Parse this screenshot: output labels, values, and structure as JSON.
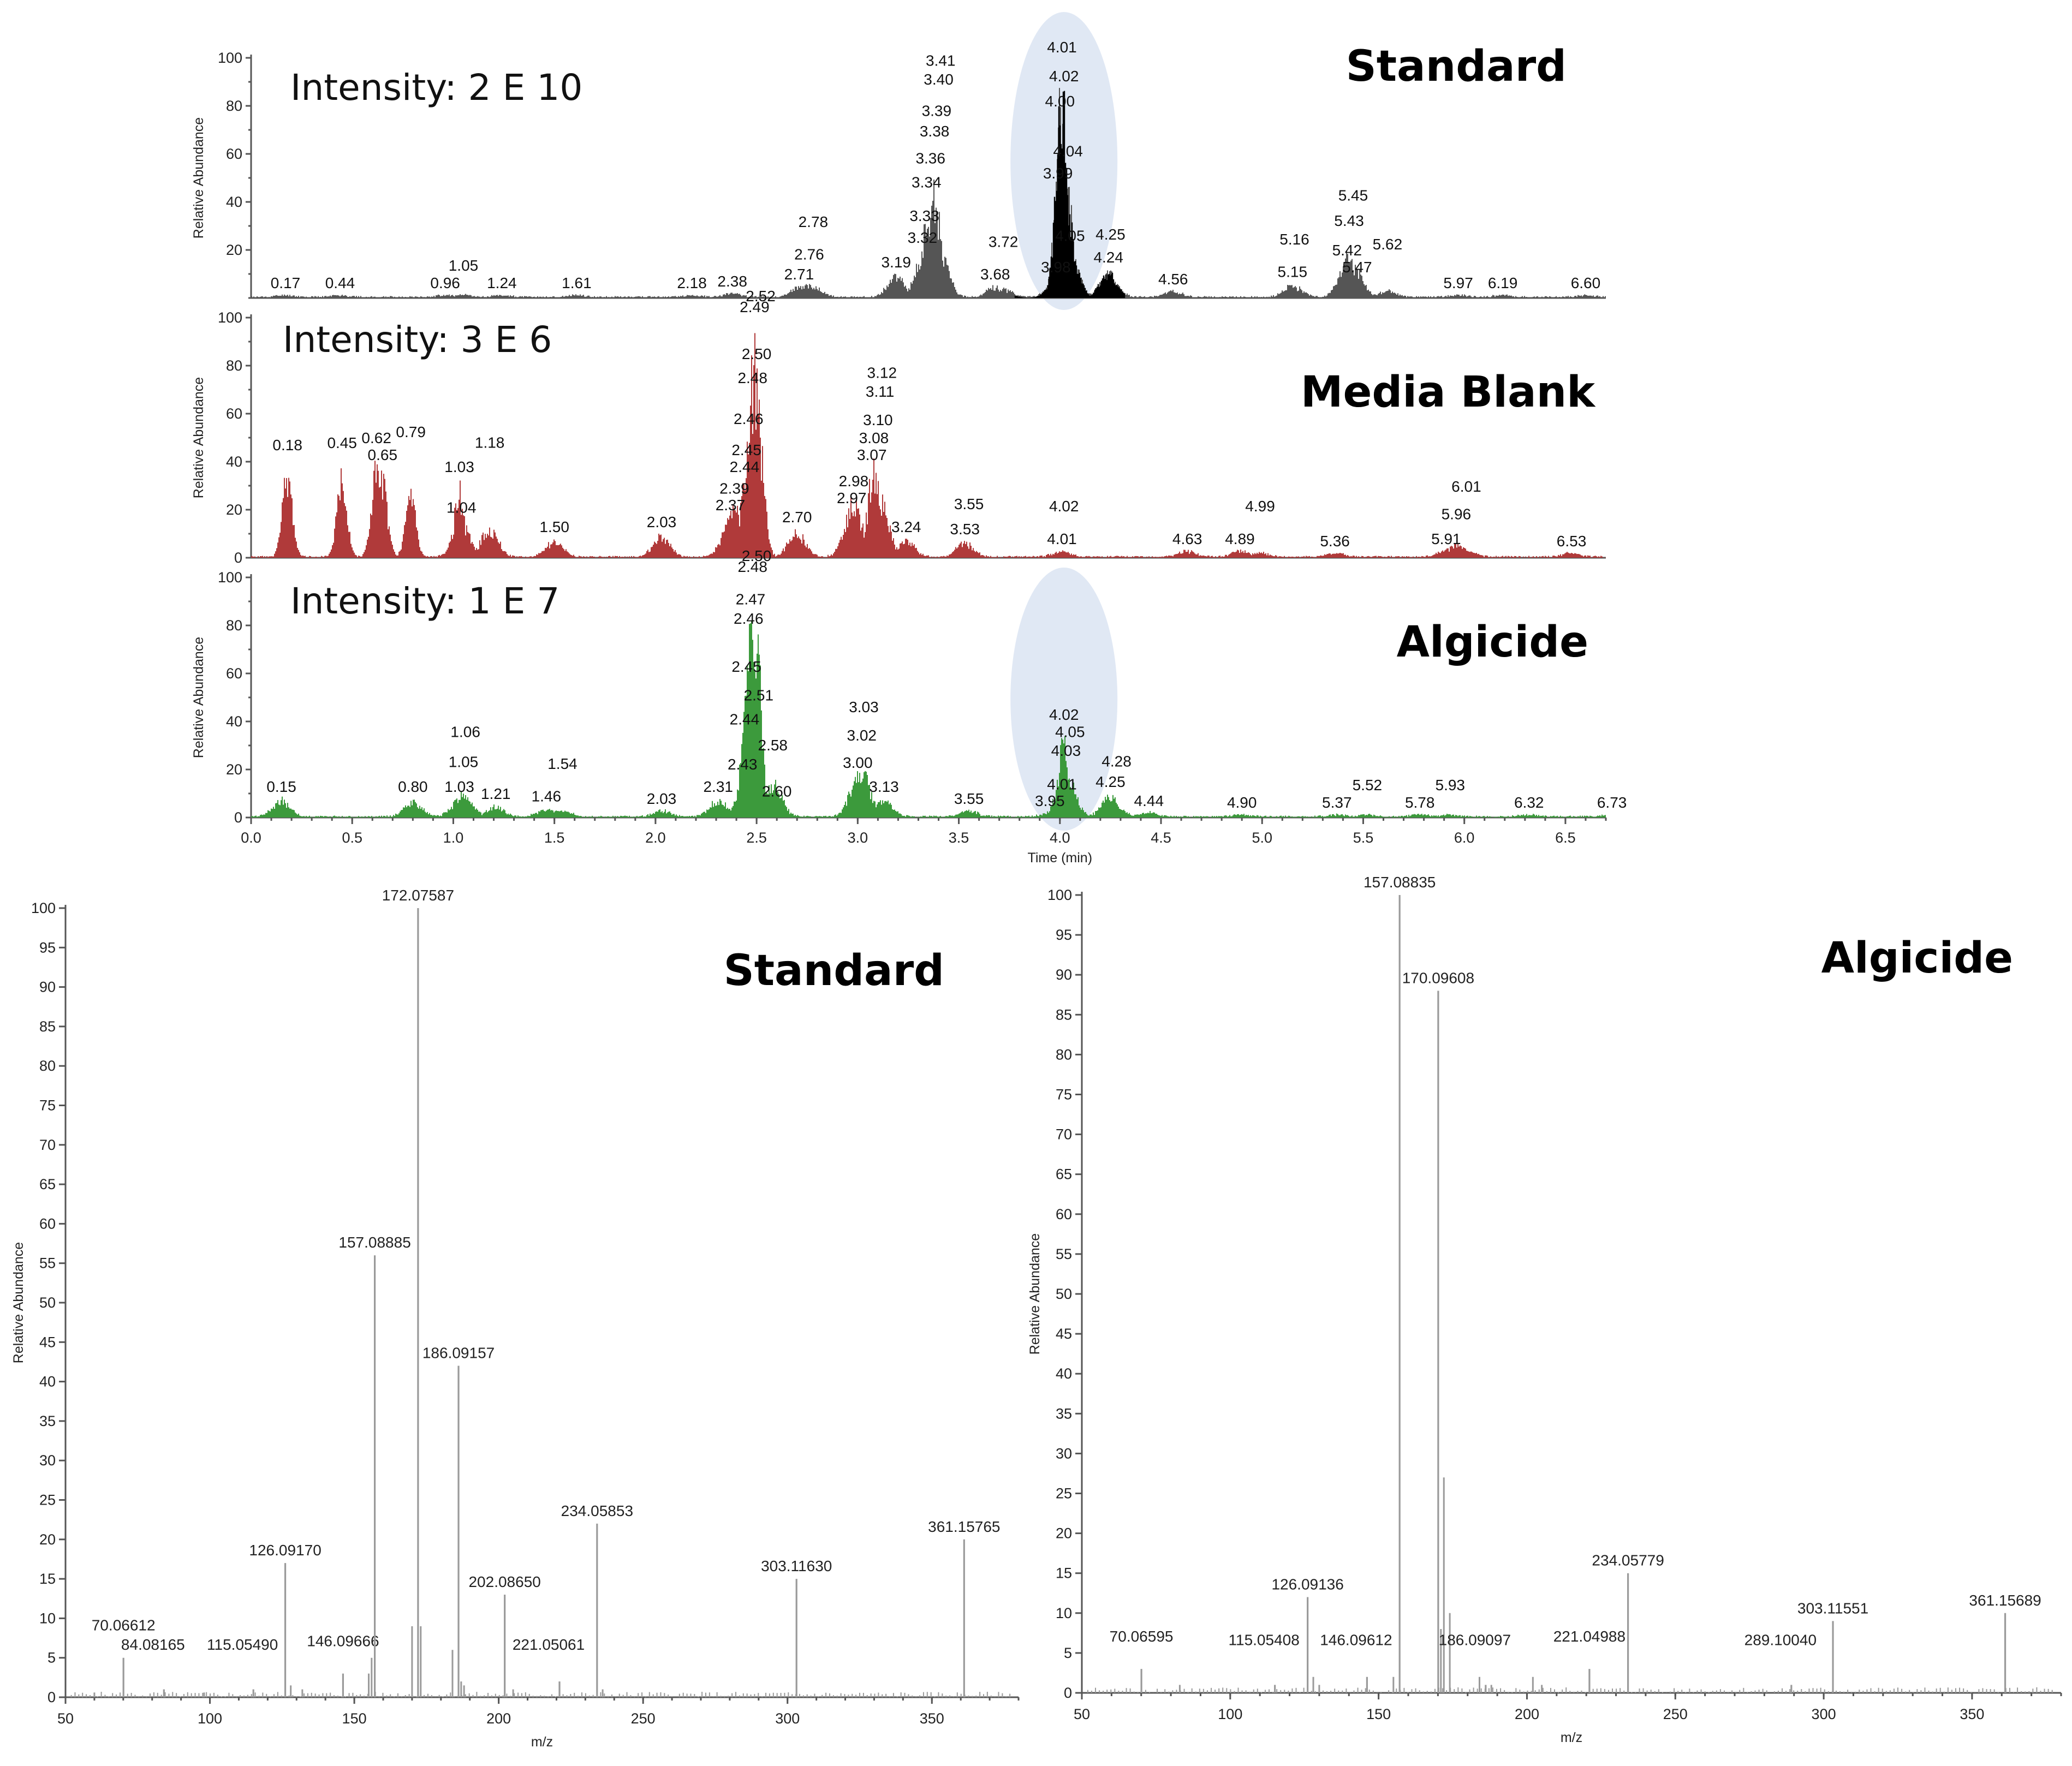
{
  "colors": {
    "standard_trace": "#555555",
    "standard_highlight": "#000000",
    "media_blank_trace": "#b03a3a",
    "algicide_trace": "#3c9a3c",
    "highlight_ellipse": "#dbe4f2",
    "spectrum_line": "#9a9a9a",
    "leader_line": "#66bb66"
  },
  "chart_data": [
    {
      "type": "line",
      "panel": "chromatogram",
      "title": "Standard",
      "annotation": "Intensity: 2 E 10",
      "ylabel": "Relative Abundance",
      "xlabel": "",
      "xlim": [
        0,
        6.7
      ],
      "ylim": [
        0,
        100
      ],
      "yticks": [
        20,
        40,
        60,
        80,
        100
      ],
      "x_ticks": [],
      "highlight_center_x": 4.02,
      "peaks": [
        {
          "x": 0.17,
          "y": 1
        },
        {
          "x": 0.44,
          "y": 1
        },
        {
          "x": 0.96,
          "y": 1
        },
        {
          "x": 1.05,
          "y": 1
        },
        {
          "x": 1.24,
          "y": 1
        },
        {
          "x": 1.61,
          "y": 1
        },
        {
          "x": 2.18,
          "y": 1
        },
        {
          "x": 2.38,
          "y": 2
        },
        {
          "x": 2.71,
          "y": 5
        },
        {
          "x": 2.76,
          "y": 6
        },
        {
          "x": 2.78,
          "y": 5
        },
        {
          "x": 3.19,
          "y": 10
        },
        {
          "x": 3.32,
          "y": 13
        },
        {
          "x": 3.33,
          "y": 22
        },
        {
          "x": 3.34,
          "y": 36
        },
        {
          "x": 3.36,
          "y": 46
        },
        {
          "x": 3.38,
          "y": 50
        },
        {
          "x": 3.39,
          "y": 44
        },
        {
          "x": 3.4,
          "y": 28
        },
        {
          "x": 3.41,
          "y": 14
        },
        {
          "x": 3.68,
          "y": 5
        },
        {
          "x": 3.72,
          "y": 4
        },
        {
          "x": 3.98,
          "y": 8
        },
        {
          "x": 3.99,
          "y": 47
        },
        {
          "x": 4.0,
          "y": 77
        },
        {
          "x": 4.01,
          "y": 100
        },
        {
          "x": 4.02,
          "y": 73
        },
        {
          "x": 4.04,
          "y": 49
        },
        {
          "x": 4.05,
          "y": 21
        },
        {
          "x": 4.24,
          "y": 12
        },
        {
          "x": 4.25,
          "y": 7
        },
        {
          "x": 4.56,
          "y": 3
        },
        {
          "x": 5.15,
          "y": 6
        },
        {
          "x": 5.16,
          "y": 5
        },
        {
          "x": 5.42,
          "y": 15
        },
        {
          "x": 5.43,
          "y": 20
        },
        {
          "x": 5.45,
          "y": 16
        },
        {
          "x": 5.47,
          "y": 8
        },
        {
          "x": 5.62,
          "y": 3
        },
        {
          "x": 5.97,
          "y": 1
        },
        {
          "x": 6.19,
          "y": 1
        },
        {
          "x": 6.6,
          "y": 1
        }
      ]
    },
    {
      "type": "line",
      "panel": "chromatogram",
      "title": "Media Blank",
      "annotation": "Intensity: 3 E 6",
      "ylabel": "Relative Abundance",
      "xlabel": "",
      "xlim": [
        0,
        6.7
      ],
      "ylim": [
        0,
        100
      ],
      "yticks": [
        0,
        20,
        40,
        60,
        80,
        100
      ],
      "x_ticks": [],
      "peaks": [
        {
          "x": 0.18,
          "y": 42
        },
        {
          "x": 0.45,
          "y": 43
        },
        {
          "x": 0.62,
          "y": 45
        },
        {
          "x": 0.65,
          "y": 38
        },
        {
          "x": 0.79,
          "y": 33
        },
        {
          "x": 1.03,
          "y": 33
        },
        {
          "x": 1.04,
          "y": 16
        },
        {
          "x": 1.18,
          "y": 14
        },
        {
          "x": 1.5,
          "y": 8
        },
        {
          "x": 2.03,
          "y": 10
        },
        {
          "x": 2.37,
          "y": 17
        },
        {
          "x": 2.39,
          "y": 24
        },
        {
          "x": 2.44,
          "y": 33
        },
        {
          "x": 2.45,
          "y": 40
        },
        {
          "x": 2.46,
          "y": 53
        },
        {
          "x": 2.48,
          "y": 70
        },
        {
          "x": 2.49,
          "y": 100
        },
        {
          "x": 2.5,
          "y": 80
        },
        {
          "x": 2.52,
          "y": 50
        },
        {
          "x": 2.7,
          "y": 12
        },
        {
          "x": 2.97,
          "y": 20
        },
        {
          "x": 2.98,
          "y": 27
        },
        {
          "x": 3.07,
          "y": 38
        },
        {
          "x": 3.08,
          "y": 45
        },
        {
          "x": 3.1,
          "y": 38
        },
        {
          "x": 3.11,
          "y": 28
        },
        {
          "x": 3.12,
          "y": 14
        },
        {
          "x": 3.24,
          "y": 8
        },
        {
          "x": 3.53,
          "y": 7
        },
        {
          "x": 3.55,
          "y": 3
        },
        {
          "x": 4.01,
          "y": 3
        },
        {
          "x": 4.02,
          "y": 2
        },
        {
          "x": 4.63,
          "y": 3
        },
        {
          "x": 4.89,
          "y": 3
        },
        {
          "x": 4.99,
          "y": 2
        },
        {
          "x": 5.36,
          "y": 2
        },
        {
          "x": 5.91,
          "y": 3
        },
        {
          "x": 5.96,
          "y": 6
        },
        {
          "x": 6.01,
          "y": 3
        },
        {
          "x": 6.53,
          "y": 2
        }
      ]
    },
    {
      "type": "line",
      "panel": "chromatogram",
      "title": "Algicide",
      "annotation": "Intensity: 1 E 7",
      "ylabel": "Relative Abundance",
      "xlabel": "Time (min)",
      "xlim": [
        0,
        6.7
      ],
      "ylim": [
        0,
        100
      ],
      "yticks": [
        0,
        20,
        40,
        60,
        80,
        100
      ],
      "x_ticks": [
        0.0,
        0.5,
        1.0,
        1.5,
        2.0,
        2.5,
        3.0,
        3.5,
        4.0,
        4.5,
        5.0,
        5.5,
        6.0,
        6.5
      ],
      "x_tick_labels": [
        "0.0",
        "0.5",
        "1.0",
        "1.5",
        "2.0",
        "2.5",
        "3.0",
        "3.5",
        "4.0",
        "4.5",
        "5.0",
        "5.5",
        "6.0",
        "6.5"
      ],
      "highlight_center_x": 4.02,
      "peaks": [
        {
          "x": 0.15,
          "y": 8
        },
        {
          "x": 0.8,
          "y": 8
        },
        {
          "x": 1.03,
          "y": 8
        },
        {
          "x": 1.05,
          "y": 11
        },
        {
          "x": 1.06,
          "y": 9
        },
        {
          "x": 1.21,
          "y": 5
        },
        {
          "x": 1.46,
          "y": 4
        },
        {
          "x": 1.54,
          "y": 3
        },
        {
          "x": 2.03,
          "y": 3
        },
        {
          "x": 2.31,
          "y": 8
        },
        {
          "x": 2.43,
          "y": 10
        },
        {
          "x": 2.44,
          "y": 36
        },
        {
          "x": 2.45,
          "y": 58
        },
        {
          "x": 2.46,
          "y": 78
        },
        {
          "x": 2.47,
          "y": 86
        },
        {
          "x": 2.48,
          "y": 100
        },
        {
          "x": 2.5,
          "y": 86
        },
        {
          "x": 2.51,
          "y": 46
        },
        {
          "x": 2.58,
          "y": 18
        },
        {
          "x": 2.6,
          "y": 6
        },
        {
          "x": 3.0,
          "y": 18
        },
        {
          "x": 3.02,
          "y": 22
        },
        {
          "x": 3.03,
          "y": 12
        },
        {
          "x": 3.13,
          "y": 8
        },
        {
          "x": 3.55,
          "y": 3
        },
        {
          "x": 3.95,
          "y": 2
        },
        {
          "x": 4.01,
          "y": 9
        },
        {
          "x": 4.02,
          "y": 38
        },
        {
          "x": 4.03,
          "y": 23
        },
        {
          "x": 4.05,
          "y": 9
        },
        {
          "x": 4.25,
          "y": 10
        },
        {
          "x": 4.28,
          "y": 4
        },
        {
          "x": 4.44,
          "y": 2
        },
        {
          "x": 4.9,
          "y": 1
        },
        {
          "x": 5.37,
          "y": 1
        },
        {
          "x": 5.52,
          "y": 1
        },
        {
          "x": 5.78,
          "y": 1
        },
        {
          "x": 5.93,
          "y": 1
        },
        {
          "x": 6.32,
          "y": 1
        },
        {
          "x": 6.73,
          "y": 1
        }
      ]
    },
    {
      "type": "bar",
      "panel": "spectrum",
      "title": "Standard",
      "xlabel": "m/z",
      "ylabel": "Relative Abundance",
      "xlim": [
        50,
        380
      ],
      "ylim": [
        0,
        100
      ],
      "xticks": [
        50,
        100,
        150,
        200,
        250,
        300,
        350
      ],
      "yticks": [
        0,
        5,
        10,
        15,
        20,
        25,
        30,
        35,
        40,
        45,
        50,
        55,
        60,
        65,
        70,
        75,
        80,
        85,
        90,
        95,
        100
      ],
      "labeled_peaks": [
        {
          "x": 70.06612,
          "y": 5,
          "label": "70.06612"
        },
        {
          "x": 84.08165,
          "y": 1,
          "label": "84.08165"
        },
        {
          "x": 115.0549,
          "y": 1,
          "label": "115.05490"
        },
        {
          "x": 126.0917,
          "y": 17,
          "label": "126.09170"
        },
        {
          "x": 146.09666,
          "y": 3,
          "label": "146.09666"
        },
        {
          "x": 157.08885,
          "y": 56,
          "label": "157.08885"
        },
        {
          "x": 172.07587,
          "y": 100,
          "label": "172.07587"
        },
        {
          "x": 186.09157,
          "y": 42,
          "label": "186.09157"
        },
        {
          "x": 202.0865,
          "y": 13,
          "label": "202.08650"
        },
        {
          "x": 221.05061,
          "y": 2,
          "label": "221.05061"
        },
        {
          "x": 234.05853,
          "y": 22,
          "label": "234.05853"
        },
        {
          "x": 303.1163,
          "y": 15,
          "label": "303.11630"
        },
        {
          "x": 361.15765,
          "y": 20,
          "label": "361.15765"
        }
      ],
      "minor_peaks": [
        {
          "x": 60,
          "y": 0.6
        },
        {
          "x": 98,
          "y": 0.6
        },
        {
          "x": 128,
          "y": 1.5
        },
        {
          "x": 132,
          "y": 1
        },
        {
          "x": 155,
          "y": 3
        },
        {
          "x": 156,
          "y": 5
        },
        {
          "x": 170,
          "y": 9
        },
        {
          "x": 173,
          "y": 9
        },
        {
          "x": 184,
          "y": 6
        },
        {
          "x": 187,
          "y": 2
        },
        {
          "x": 188,
          "y": 1.5
        },
        {
          "x": 205,
          "y": 1
        },
        {
          "x": 236,
          "y": 1
        }
      ]
    },
    {
      "type": "bar",
      "panel": "spectrum",
      "title": "Algicide",
      "xlabel": "m/z",
      "ylabel": "Relative Abundance",
      "xlim": [
        50,
        380
      ],
      "ylim": [
        0,
        100
      ],
      "xticks": [
        50,
        100,
        150,
        200,
        250,
        300,
        350
      ],
      "yticks": [
        0,
        5,
        10,
        15,
        20,
        25,
        30,
        35,
        40,
        45,
        50,
        55,
        60,
        65,
        70,
        75,
        80,
        85,
        90,
        95,
        100
      ],
      "labeled_peaks": [
        {
          "x": 70.06595,
          "y": 3,
          "label": "70.06595"
        },
        {
          "x": 115.05408,
          "y": 1,
          "label": "115.05408"
        },
        {
          "x": 126.09136,
          "y": 12,
          "label": "126.09136"
        },
        {
          "x": 146.09612,
          "y": 2,
          "label": "146.09612"
        },
        {
          "x": 157.08835,
          "y": 100,
          "label": "157.08835"
        },
        {
          "x": 170.09608,
          "y": 88,
          "label": "170.09608"
        },
        {
          "x": 186.09097,
          "y": 1,
          "label": "186.09097"
        },
        {
          "x": 221.04988,
          "y": 3,
          "label": "221.04988"
        },
        {
          "x": 234.05779,
          "y": 15,
          "label": "234.05779"
        },
        {
          "x": 289.1004,
          "y": 1,
          "label": "289.10040"
        },
        {
          "x": 303.11551,
          "y": 9,
          "label": "303.11551"
        },
        {
          "x": 361.15689,
          "y": 10,
          "label": "361.15689"
        }
      ],
      "minor_peaks": [
        {
          "x": 83,
          "y": 1
        },
        {
          "x": 128,
          "y": 2
        },
        {
          "x": 130,
          "y": 1
        },
        {
          "x": 155,
          "y": 2
        },
        {
          "x": 172,
          "y": 27
        },
        {
          "x": 171,
          "y": 8
        },
        {
          "x": 174,
          "y": 10
        },
        {
          "x": 184,
          "y": 2
        },
        {
          "x": 188,
          "y": 1
        },
        {
          "x": 202,
          "y": 2
        },
        {
          "x": 205,
          "y": 1
        }
      ]
    }
  ]
}
